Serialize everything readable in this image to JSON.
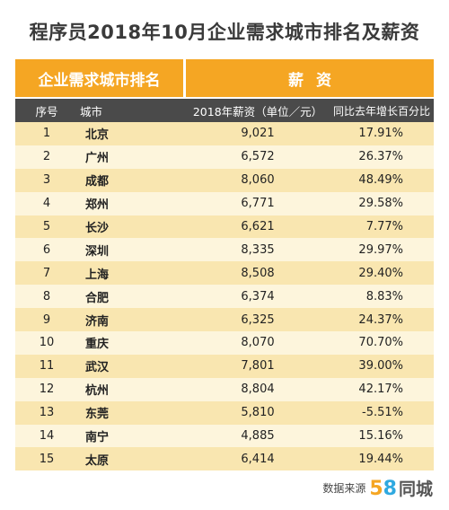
{
  "title": "程序员2018年10月企业需求城市排名及薪资",
  "group_headers": {
    "left": "企业需求城市排名",
    "right": "薪资"
  },
  "column_headers": [
    "序号",
    "城市",
    "2018年薪资（单位／元）",
    "同比去年增长百分比"
  ],
  "rows": [
    {
      "rank": "1",
      "city": "北京",
      "salary": "9,021",
      "growth": "17.91%"
    },
    {
      "rank": "2",
      "city": "广州",
      "salary": "6,572",
      "growth": "26.37%"
    },
    {
      "rank": "3",
      "city": "成都",
      "salary": "8,060",
      "growth": "48.49%"
    },
    {
      "rank": "4",
      "city": "郑州",
      "salary": "6,771",
      "growth": "29.58%"
    },
    {
      "rank": "5",
      "city": "长沙",
      "salary": "6,621",
      "growth": "7.77%"
    },
    {
      "rank": "6",
      "city": "深圳",
      "salary": "8,335",
      "growth": "29.97%"
    },
    {
      "rank": "7",
      "city": "上海",
      "salary": "8,508",
      "growth": "29.40%"
    },
    {
      "rank": "8",
      "city": "合肥",
      "salary": "6,374",
      "growth": "8.83%"
    },
    {
      "rank": "9",
      "city": "济南",
      "salary": "6,325",
      "growth": "24.37%"
    },
    {
      "rank": "10",
      "city": "重庆",
      "salary": "8,070",
      "growth": "70.70%"
    },
    {
      "rank": "11",
      "city": "武汉",
      "salary": "7,801",
      "growth": "39.00%"
    },
    {
      "rank": "12",
      "city": "杭州",
      "salary": "8,804",
      "growth": "42.17%"
    },
    {
      "rank": "13",
      "city": "东莞",
      "salary": "5,810",
      "growth": "-5.51%"
    },
    {
      "rank": "14",
      "city": "南宁",
      "salary": "4,885",
      "growth": "15.16%"
    },
    {
      "rank": "15",
      "city": "太原",
      "salary": "6,414",
      "growth": "19.44%"
    }
  ],
  "footer": {
    "source_label": "数据来源",
    "logo_5": "5",
    "logo_8": "8",
    "logo_text": "同城"
  },
  "colors": {
    "accent": "#f5a623",
    "header_dark": "#4a4a4a",
    "row_odd": "#f9e6b0",
    "row_even": "#fdf5dc",
    "logo_blue": "#2fa9e0"
  },
  "chart_data": {
    "type": "table",
    "title": "程序员2018年10月企业需求城市排名及薪资",
    "columns": [
      "序号",
      "城市",
      "2018年薪资（单位／元）",
      "同比去年增长百分比"
    ],
    "categories": [
      "北京",
      "广州",
      "成都",
      "郑州",
      "长沙",
      "深圳",
      "上海",
      "合肥",
      "济南",
      "重庆",
      "武汉",
      "杭州",
      "东莞",
      "南宁",
      "太原"
    ],
    "series": [
      {
        "name": "2018年薪资（单位／元）",
        "values": [
          9021,
          6572,
          8060,
          6771,
          6621,
          8335,
          8508,
          6374,
          6325,
          8070,
          7801,
          8804,
          5810,
          4885,
          6414
        ]
      },
      {
        "name": "同比去年增长百分比",
        "values": [
          17.91,
          26.37,
          48.49,
          29.58,
          7.77,
          29.97,
          29.4,
          8.83,
          24.37,
          70.7,
          39.0,
          42.17,
          -5.51,
          15.16,
          19.44
        ]
      }
    ]
  }
}
